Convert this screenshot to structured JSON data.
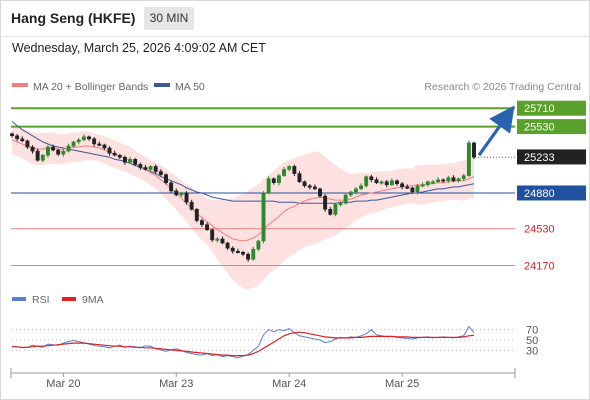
{
  "header": {
    "title": "Hang Seng (HKFE)",
    "timeframe": "30 MIN",
    "datetime": "Wednesday, March 25, 2026 4:09:02 AM CET"
  },
  "legend": {
    "ma20_label": "MA 20 + Bollinger Bands",
    "ma50_label": "MA 50",
    "copyright": "Research © 2026 Trading Central"
  },
  "rsi_legend": {
    "rsi_label": "RSI",
    "ma_label": "9MA"
  },
  "colors": {
    "ma20": "#f08080",
    "ma50": "#3a5a9a",
    "bollinger_fill": "#fde0e0",
    "resistance": "#5aa02c",
    "support": "#2050a0",
    "minor_support": "#e08080",
    "price_badge": "#222222",
    "rsi": "#5b7fd6",
    "rsi_ma": "#dd2222",
    "arrow": "#2a64b0"
  },
  "chart_data": [
    {
      "type": "candlestick",
      "title": "Hang Seng (HKFE)",
      "interval": "30 MIN",
      "x_ticks": [
        "Mar 20",
        "Mar 23",
        "Mar 24",
        "Mar 25"
      ],
      "ylim": [
        23930,
        25810
      ],
      "levels": [
        {
          "value": 25710,
          "label": "25710",
          "kind": "resistance"
        },
        {
          "value": 25530,
          "label": "25530",
          "kind": "resistance"
        },
        {
          "value": 25233,
          "label": "25233",
          "kind": "last-price"
        },
        {
          "value": 24880,
          "label": "24880",
          "kind": "pivot"
        },
        {
          "value": 24530,
          "label": "24530",
          "kind": "support"
        },
        {
          "value": 24170,
          "label": "24170",
          "kind": "support"
        }
      ],
      "close": [
        25440,
        25410,
        25390,
        25330,
        25290,
        25200,
        25250,
        25330,
        25300,
        25260,
        25290,
        25340,
        25380,
        25400,
        25430,
        25410,
        25360,
        25350,
        25320,
        25270,
        25250,
        25230,
        25180,
        25210,
        25160,
        25130,
        25110,
        25140,
        25090,
        25060,
        24980,
        24900,
        24860,
        24880,
        24790,
        24720,
        24610,
        24570,
        24520,
        24420,
        24430,
        24390,
        24340,
        24310,
        24300,
        24280,
        24230,
        24330,
        24410,
        24880,
        25020,
        24980,
        25050,
        25110,
        25140,
        25070,
        24990,
        24950,
        24940,
        24920,
        24850,
        24720,
        24670,
        24770,
        24780,
        24860,
        24890,
        24920,
        24950,
        25040,
        25010,
        24980,
        24990,
        24960,
        25000,
        24970,
        24940,
        24930,
        24890,
        24950,
        24960,
        24990,
        24990,
        25010,
        25000,
        25030,
        25000,
        25020,
        25050,
        25370,
        25230
      ],
      "series": [
        {
          "name": "MA 20",
          "values": [
            25400,
            25380,
            25360,
            25340,
            25320,
            25310,
            25310,
            25320,
            25320,
            25310,
            25310,
            25320,
            25330,
            25330,
            25340,
            25340,
            25330,
            25320,
            25300,
            25280,
            25260,
            25240,
            25220,
            25200,
            25170,
            25140,
            25110,
            25080,
            25050,
            25010,
            24970,
            24920,
            24880,
            24830,
            24780,
            24730,
            24680,
            24640,
            24600,
            24560,
            24520,
            24490,
            24460,
            24430,
            24420,
            24410,
            24420,
            24440,
            24470,
            24520,
            24570,
            24610,
            24650,
            24700,
            24730,
            24750,
            24780,
            24800,
            24820,
            24830,
            24840,
            24830,
            24820,
            24810,
            24810,
            24810,
            24820,
            24840,
            24860,
            24870,
            24880,
            24890,
            24900,
            24910,
            24920,
            24930,
            24940,
            24950,
            24950,
            24960,
            24960,
            24970,
            24970,
            24980,
            24980,
            24990,
            24990,
            25000,
            25000,
            25020,
            25040
          ]
        },
        {
          "name": "MA 50",
          "values": [
            25580,
            25540,
            25500,
            25470,
            25440,
            25410,
            25380,
            25360,
            25340,
            25330,
            25320,
            25310,
            25300,
            25290,
            25280,
            25270,
            25260,
            25250,
            25240,
            25230,
            25210,
            25200,
            25190,
            25170,
            25150,
            25130,
            25110,
            25090,
            25070,
            25040,
            25020,
            25000,
            24980,
            24960,
            24930,
            24910,
            24890,
            24880,
            24860,
            24840,
            24830,
            24820,
            24810,
            24800,
            24800,
            24800,
            24800,
            24800,
            24800,
            24800,
            24800,
            24800,
            24790,
            24790,
            24790,
            24790,
            24780,
            24780,
            24780,
            24780,
            24780,
            24780,
            24780,
            24780,
            24790,
            24790,
            24790,
            24800,
            24800,
            24800,
            24810,
            24810,
            24820,
            24830,
            24840,
            24850,
            24860,
            24870,
            24880,
            24880,
            24890,
            24900,
            24910,
            24920,
            24920,
            24930,
            24940,
            24940,
            24950,
            24960,
            24970
          ]
        }
      ]
    },
    {
      "type": "line",
      "title": "",
      "y_ticks": [
        "70",
        "50",
        "30"
      ],
      "ylim": [
        0,
        100
      ],
      "series": [
        {
          "name": "RSI",
          "values": [
            38,
            37,
            35,
            36,
            40,
            38,
            36,
            42,
            41,
            40,
            44,
            47,
            49,
            47,
            45,
            42,
            40,
            38,
            37,
            35,
            38,
            40,
            36,
            38,
            37,
            35,
            39,
            38,
            33,
            31,
            28,
            31,
            33,
            30,
            26,
            24,
            22,
            21,
            24,
            20,
            22,
            18,
            20,
            18,
            16,
            19,
            22,
            30,
            38,
            60,
            70,
            66,
            70,
            68,
            72,
            64,
            58,
            56,
            54,
            52,
            50,
            45,
            47,
            52,
            55,
            54,
            56,
            55,
            58,
            62,
            70,
            60,
            58,
            56,
            57,
            55,
            54,
            53,
            52,
            54,
            55,
            56,
            54,
            55,
            56,
            55,
            54,
            56,
            58,
            76,
            64
          ]
        },
        {
          "name": "9MA",
          "values": [
            37,
            37,
            36,
            36,
            37,
            38,
            38,
            39,
            40,
            41,
            42,
            43,
            44,
            44,
            44,
            43,
            42,
            41,
            40,
            39,
            38,
            38,
            37,
            37,
            36,
            36,
            35,
            35,
            34,
            33,
            32,
            31,
            30,
            29,
            28,
            27,
            26,
            25,
            24,
            23,
            22,
            21,
            21,
            20,
            20,
            20,
            21,
            24,
            28,
            34,
            40,
            46,
            52,
            58,
            62,
            64,
            65,
            64,
            62,
            60,
            58,
            56,
            55,
            54,
            54,
            54,
            54,
            55,
            55,
            56,
            57,
            57,
            57,
            57,
            57,
            56,
            56,
            56,
            55,
            55,
            55,
            55,
            55,
            55,
            55,
            55,
            55,
            55,
            56,
            58,
            59
          ]
        }
      ]
    }
  ]
}
